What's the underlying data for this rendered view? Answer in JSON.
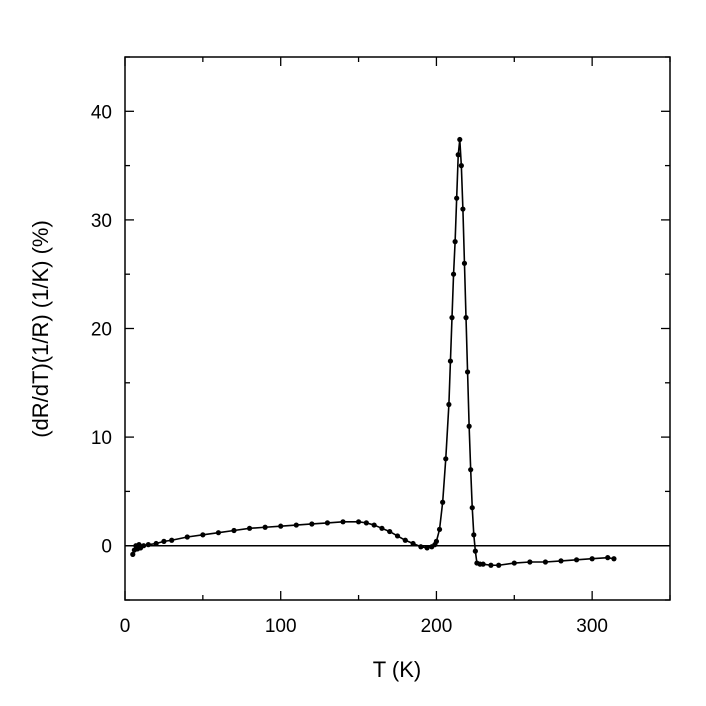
{
  "chart_data": {
    "type": "line",
    "xlabel": "T (K)",
    "ylabel": "(dR/dT)(1/R) (1/K) (%)",
    "xlim": [
      0,
      350
    ],
    "ylim": [
      -5,
      45
    ],
    "x_ticks": [
      0,
      100,
      200,
      300
    ],
    "y_ticks": [
      0,
      10,
      20,
      30,
      40
    ],
    "x_tick_labels": [
      "0",
      "100",
      "200",
      "300"
    ],
    "y_tick_labels": [
      "0",
      "10",
      "20",
      "30",
      "40"
    ],
    "grid": false,
    "legend": "none",
    "reference_line": {
      "y": 0
    },
    "marker": "filled-circle",
    "colors": {
      "series": "#000000",
      "axes": "#000000"
    },
    "series": [
      {
        "x": [
          5,
          6,
          7,
          8,
          9,
          10,
          12,
          15,
          20,
          25,
          30,
          40,
          50,
          60,
          70,
          80,
          90,
          100,
          110,
          120,
          130,
          140,
          150,
          155,
          160,
          165,
          170,
          175,
          180,
          185,
          190,
          194,
          197,
          199,
          200,
          202,
          204,
          206,
          208,
          209,
          210,
          211,
          212,
          213,
          214,
          215,
          216,
          217,
          218,
          219,
          220,
          221,
          222,
          223,
          224,
          225,
          226,
          228,
          230,
          235,
          240,
          250,
          260,
          270,
          280,
          290,
          300,
          310,
          314
        ],
        "y": [
          -0.8,
          -0.4,
          0.0,
          -0.3,
          0.1,
          -0.2,
          0.0,
          0.1,
          0.2,
          0.4,
          0.5,
          0.8,
          1.0,
          1.2,
          1.4,
          1.6,
          1.7,
          1.8,
          1.9,
          2.0,
          2.1,
          2.2,
          2.2,
          2.1,
          1.9,
          1.6,
          1.3,
          0.9,
          0.5,
          0.2,
          -0.1,
          -0.2,
          -0.1,
          0.1,
          0.4,
          1.5,
          4.0,
          8.0,
          13.0,
          17.0,
          21.0,
          25.0,
          28.0,
          32.0,
          36.0,
          37.4,
          35.0,
          31.0,
          26.0,
          21.0,
          16.0,
          11.0,
          7.0,
          3.5,
          1.0,
          -0.5,
          -1.6,
          -1.7,
          -1.7,
          -1.8,
          -1.8,
          -1.6,
          -1.5,
          -1.5,
          -1.4,
          -1.3,
          -1.2,
          -1.1,
          -1.2
        ]
      }
    ]
  }
}
